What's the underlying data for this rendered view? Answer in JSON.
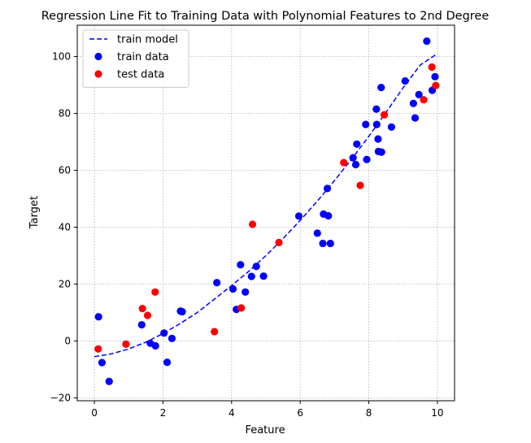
{
  "chart_data": {
    "type": "scatter",
    "title": "Regression Line Fit to Training Data with Polynomial Features to 2nd Degree",
    "xlabel": "Feature",
    "ylabel": "Target",
    "xlim": [
      -0.5,
      10.5
    ],
    "ylim": [
      -21,
      111
    ],
    "xticks": [
      0,
      2,
      4,
      6,
      8,
      10
    ],
    "yticks": [
      -20,
      0,
      20,
      40,
      60,
      80,
      100
    ],
    "grid": true,
    "legend_position": "top-left",
    "series": [
      {
        "name": "train model",
        "kind": "line",
        "style": "dashed",
        "color": "#0000ff",
        "x": [
          0,
          0.5,
          1,
          1.5,
          2,
          2.5,
          3,
          3.5,
          4,
          4.5,
          5,
          5.5,
          6,
          6.5,
          7,
          7.5,
          8,
          8.5,
          9,
          9.5,
          10
        ],
        "y": [
          -5.5,
          -4.5,
          -2.8,
          -0.4,
          2.6,
          6.1,
          10.0,
          14.7,
          19.5,
          24.5,
          30.0,
          36.0,
          42.4,
          49.2,
          56.4,
          64.0,
          71.9,
          80.3,
          89.0,
          97.0,
          101.0
        ]
      },
      {
        "name": "train data",
        "kind": "scatter",
        "color": "#0000ff",
        "x": [
          0.12,
          0.22,
          0.43,
          1.38,
          1.63,
          1.78,
          2.03,
          2.12,
          2.26,
          2.51,
          2.56,
          3.57,
          4.04,
          4.14,
          4.26,
          4.4,
          4.58,
          4.72,
          4.93,
          5.96,
          6.5,
          6.66,
          6.68,
          6.79,
          6.82,
          6.88,
          7.54,
          7.62,
          7.65,
          7.91,
          7.94,
          8.22,
          8.23,
          8.28,
          8.27,
          8.36,
          8.37,
          8.66,
          9.06,
          9.3,
          9.35,
          9.46,
          9.69,
          9.85,
          9.93
        ],
        "y": [
          8.5,
          -7.6,
          -14.2,
          5.7,
          -0.8,
          -1.7,
          2.8,
          -7.5,
          0.9,
          10.5,
          10.3,
          20.5,
          18.3,
          11.1,
          26.8,
          17.2,
          22.7,
          26.2,
          22.8,
          43.9,
          37.9,
          34.3,
          44.6,
          53.6,
          44.0,
          34.3,
          64.4,
          62.0,
          69.2,
          76.1,
          63.8,
          81.5,
          76.1,
          66.6,
          71.0,
          89.1,
          66.4,
          75.2,
          91.4,
          83.5,
          78.4,
          86.6,
          105.4,
          88.1,
          92.9
        ]
      },
      {
        "name": "test data",
        "kind": "scatter",
        "color": "#ff0000",
        "x": [
          0.11,
          0.92,
          1.4,
          1.55,
          1.77,
          3.5,
          4.28,
          4.61,
          5.38,
          7.27,
          7.75,
          8.45,
          9.6,
          9.84,
          9.95
        ],
        "y": [
          -2.8,
          -1.1,
          11.4,
          9.0,
          17.2,
          3.3,
          11.6,
          41.0,
          34.6,
          62.7,
          54.7,
          79.5,
          84.8,
          96.3,
          89.8
        ]
      }
    ]
  }
}
